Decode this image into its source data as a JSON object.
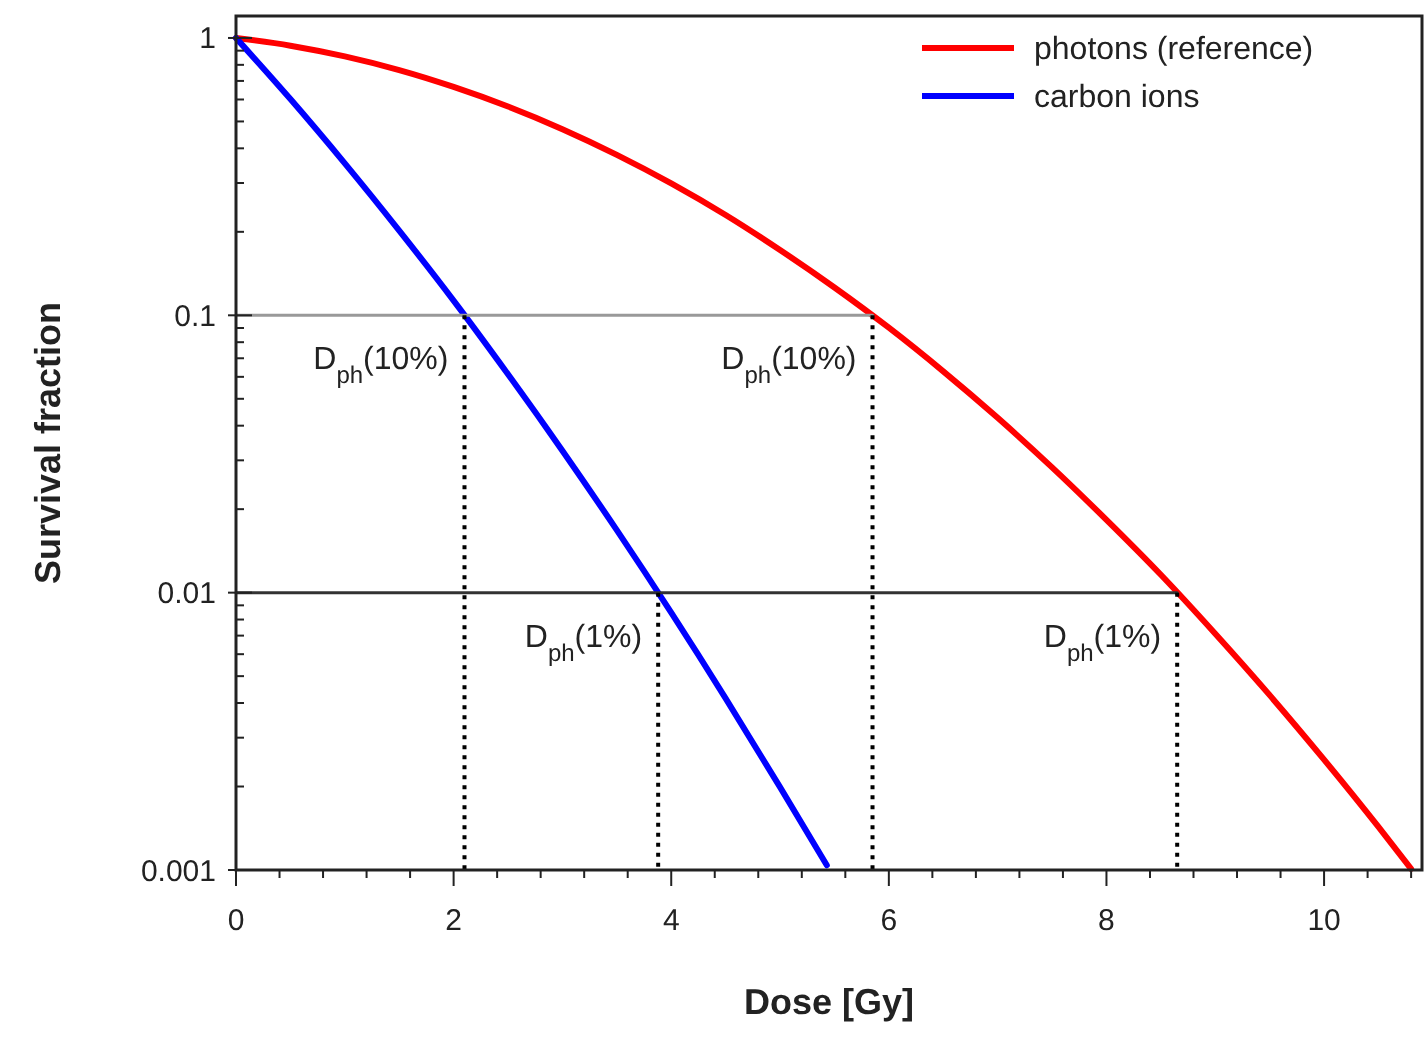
{
  "chart_data": {
    "type": "line",
    "xlabel": "Dose [Gy]",
    "ylabel": "Survival fraction",
    "log": "y",
    "xlim": [
      0,
      10.9
    ],
    "ylim": [
      0.001,
      1.2
    ],
    "xticks": [
      0,
      2,
      4,
      6,
      8,
      10
    ],
    "yticks": [
      1,
      0.1,
      0.01,
      0.001
    ],
    "grid": false,
    "legend": "top right",
    "marker": "none",
    "series": [
      {
        "name": "photons (reference)",
        "color": "#ff0000",
        "x": [
          0,
          0.5,
          1,
          1.5,
          2,
          2.5,
          3,
          3.5,
          4,
          4.5,
          5,
          5.5,
          6,
          6.5,
          7,
          7.5,
          8,
          8.5,
          9,
          9.5,
          10,
          10.5,
          10.8
        ],
        "values": [
          1,
          0.938,
          0.858,
          0.766,
          0.666,
          0.566,
          0.469,
          0.379,
          0.299,
          0.23,
          0.172,
          0.126,
          0.0902,
          0.0628,
          0.0427,
          0.0283,
          0.0183,
          0.0116,
          0.00711,
          0.00427,
          0.0025,
          0.00143,
          0.00101
        ]
      },
      {
        "name": "carbon ions",
        "color": "#0000ff",
        "x": [
          0,
          0.5,
          1,
          1.5,
          2,
          2.5,
          3,
          3.5,
          4,
          4.5,
          5,
          5.43
        ],
        "values": [
          1,
          0.602,
          0.353,
          0.202,
          0.113,
          0.0613,
          0.0325,
          0.0168,
          0.00847,
          0.00416,
          0.00199,
          0.00104
        ]
      },
      {
        "color": "#999999",
        "line_style": "solid",
        "x": [
          0,
          5.85
        ],
        "values": [
          0.1,
          0.1
        ]
      },
      {
        "color": "#333333",
        "line_style": "solid",
        "x": [
          0,
          8.65
        ],
        "values": [
          0.01,
          0.01
        ]
      },
      {
        "color": "#000000",
        "line_style": "dotted",
        "x": [
          2.1,
          2.1
        ],
        "values": [
          0.1,
          0.001
        ]
      },
      {
        "color": "#000000",
        "line_style": "dotted",
        "x": [
          3.88,
          3.88
        ],
        "values": [
          0.01,
          0.001
        ]
      },
      {
        "color": "#000000",
        "line_style": "dotted",
        "x": [
          5.85,
          5.85
        ],
        "values": [
          0.1,
          0.001
        ]
      },
      {
        "color": "#000000",
        "line_style": "dotted",
        "x": [
          8.65,
          8.65
        ],
        "values": [
          0.01,
          0.001
        ]
      }
    ],
    "annotations": [
      {
        "text": "D$_{ph}$(10%)",
        "x": 2.1,
        "y": 0.1
      },
      {
        "text": "D$_{ph}$(10%)",
        "x": 5.85,
        "y": 0.1
      },
      {
        "text": "D$_{ph}$(1%)",
        "x": 3.88,
        "y": 0.01
      },
      {
        "text": "D$_{ph}$(1%)",
        "x": 8.65,
        "y": 0.01
      }
    ]
  }
}
